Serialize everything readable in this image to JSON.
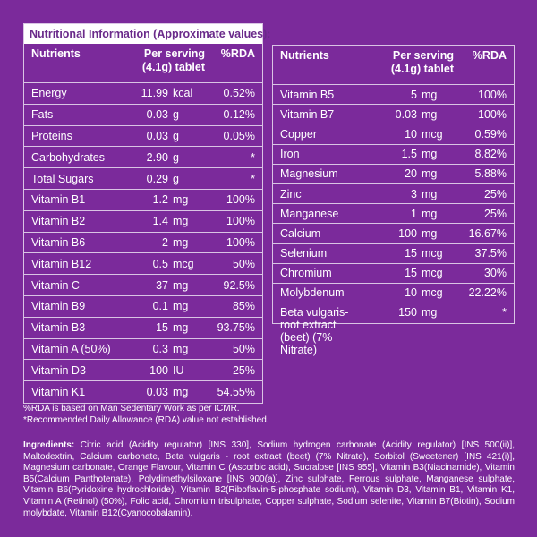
{
  "left_table": {
    "title": "Nutritional Information (Approximate values):",
    "headers": {
      "nutrient": "Nutrients",
      "serving": "Per serving (4.1g) tablet",
      "rda": "%RDA"
    },
    "rows": [
      {
        "name": "Energy",
        "amount": "11.99",
        "unit": "kcal",
        "rda": "0.52%"
      },
      {
        "name": "Fats",
        "amount": "0.03",
        "unit": "g",
        "rda": "0.12%"
      },
      {
        "name": "Proteins",
        "amount": "0.03",
        "unit": "g",
        "rda": "0.05%"
      },
      {
        "name": "Carbohydrates",
        "amount": "2.90",
        "unit": "g",
        "rda": "*"
      },
      {
        "name": "Total Sugars",
        "amount": "0.29",
        "unit": "g",
        "rda": "*"
      },
      {
        "name": "Vitamin B1",
        "amount": "1.2",
        "unit": "mg",
        "rda": "100%"
      },
      {
        "name": "Vitamin B2",
        "amount": "1.4",
        "unit": "mg",
        "rda": "100%"
      },
      {
        "name": "Vitamin B6",
        "amount": "2",
        "unit": "mg",
        "rda": "100%"
      },
      {
        "name": "Vitamin B12",
        "amount": "0.5",
        "unit": "mcg",
        "rda": "50%"
      },
      {
        "name": "Vitamin C",
        "amount": "37",
        "unit": "mg",
        "rda": "92.5%"
      },
      {
        "name": "Vitamin B9",
        "amount": "0.1",
        "unit": "mg",
        "rda": "85%"
      },
      {
        "name": "Vitamin B3",
        "amount": "15",
        "unit": "mg",
        "rda": "93.75%"
      },
      {
        "name": "Vitamin A (50%)",
        "amount": "0.3",
        "unit": "mg",
        "rda": "50%"
      },
      {
        "name": "Vitamin D3",
        "amount": "100",
        "unit": "IU",
        "rda": "25%"
      },
      {
        "name": "Vitamin K1",
        "amount": "0.03",
        "unit": "mg",
        "rda": "54.55%"
      }
    ]
  },
  "right_table": {
    "headers": {
      "nutrient": "Nutrients",
      "serving": "Per serving (4.1g) tablet",
      "rda": "%RDA"
    },
    "rows": [
      {
        "name": "Vitamin B5",
        "amount": "5",
        "unit": "mg",
        "rda": "100%"
      },
      {
        "name": "Vitamin B7",
        "amount": "0.03",
        "unit": "mg",
        "rda": "100%"
      },
      {
        "name": "Copper",
        "amount": "10",
        "unit": "mcg",
        "rda": "0.59%"
      },
      {
        "name": "Iron",
        "amount": "1.5",
        "unit": "mg",
        "rda": "8.82%"
      },
      {
        "name": "Magnesium",
        "amount": "20",
        "unit": "mg",
        "rda": "5.88%"
      },
      {
        "name": "Zinc",
        "amount": "3",
        "unit": "mg",
        "rda": "25%"
      },
      {
        "name": "Manganese",
        "amount": "1",
        "unit": "mg",
        "rda": "25%"
      },
      {
        "name": "Calcium",
        "amount": "100",
        "unit": "mg",
        "rda": "16.67%"
      },
      {
        "name": "Selenium",
        "amount": "15",
        "unit": "mcg",
        "rda": "37.5%"
      },
      {
        "name": "Chromium",
        "amount": "15",
        "unit": "mcg",
        "rda": "30%"
      },
      {
        "name": "Molybdenum",
        "amount": "10",
        "unit": "mcg",
        "rda": "22.22%"
      },
      {
        "name": "Beta vulgaris-root extract (beet) (7% Nitrate)",
        "amount": "150",
        "unit": "mg",
        "rda": "*"
      }
    ]
  },
  "notes": [
    "%RDA is based on Man Sedentary Work as per ICMR.",
    "*Recommended Daily Allowance (RDA) value not established."
  ],
  "ingredients": {
    "label": "Ingredients:",
    "text": " Citric acid (Acidity regulator) [INS 330], Sodium hydrogen carbonate (Acidity regulator) [INS 500(ii)], Maltodextrin, Calcium carbonate, Beta vulgaris - root extract (beet) (7% Nitrate), Sorbitol (Sweetener) [INS 421(i)], Magnesium carbonate, Orange Flavour, Vitamin C (Ascorbic acid), Sucralose [INS 955], Vitamin B3(Niacinamide), Vitamin B5(Calcium Panthotenate), Polydimethylsiloxane [INS 900(a)], Zinc sulphate, Ferrous sulphate, Manganese sulphate, Vitamin B6(Pyridoxine hydrochloride), Vitamin B2(Riboflavin-5-phosphate sodium), Vitamin D3, Vitamin B1, Vitamin K1, Vitamin A (Retinol) (50%), Folic acid, Chromium trisulphate, Copper sulphate, Sodium selenite, Vitamin B7(Biotin), Sodium molybdate, Vitamin B12(Cyanocobalamin)."
  },
  "colors": {
    "background": "#7b2a9b",
    "title_text": "#6a2a8a",
    "border": "#d9c4e4"
  }
}
